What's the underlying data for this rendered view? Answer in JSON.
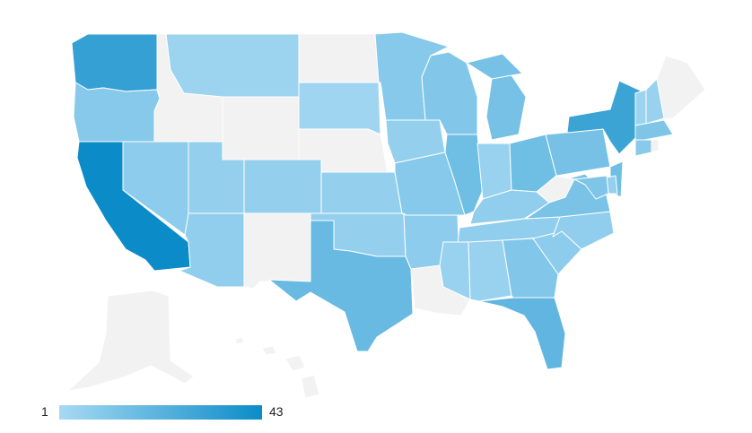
{
  "map": {
    "region": "United States",
    "colors": {
      "no_data": "#f2f2f2",
      "scale_min": "#a7d9f3",
      "scale_max": "#0b8cc8"
    }
  },
  "legend": {
    "min_label": "1",
    "max_label": "43",
    "min_value": 1,
    "max_value": 43
  },
  "states": [
    {
      "id": "WA",
      "value": 32
    },
    {
      "id": "OR",
      "value": 10
    },
    {
      "id": "CA",
      "value": 43
    },
    {
      "id": "ID",
      "value": null
    },
    {
      "id": "NV",
      "value": 8
    },
    {
      "id": "UT",
      "value": 6
    },
    {
      "id": "AZ",
      "value": 7
    },
    {
      "id": "MT",
      "value": 4
    },
    {
      "id": "WY",
      "value": null
    },
    {
      "id": "CO",
      "value": 6
    },
    {
      "id": "NM",
      "value": null
    },
    {
      "id": "ND",
      "value": null
    },
    {
      "id": "SD",
      "value": 3
    },
    {
      "id": "NE",
      "value": null
    },
    {
      "id": "KS",
      "value": 6
    },
    {
      "id": "OK",
      "value": 6
    },
    {
      "id": "TX",
      "value": 18
    },
    {
      "id": "MN",
      "value": 10
    },
    {
      "id": "IA",
      "value": 6
    },
    {
      "id": "MO",
      "value": 10
    },
    {
      "id": "AR",
      "value": 8
    },
    {
      "id": "LA",
      "value": null
    },
    {
      "id": "WI",
      "value": 11
    },
    {
      "id": "IL",
      "value": 16
    },
    {
      "id": "MI",
      "value": 14
    },
    {
      "id": "IN",
      "value": 5
    },
    {
      "id": "OH",
      "value": 16
    },
    {
      "id": "KY",
      "value": 7
    },
    {
      "id": "TN",
      "value": 7
    },
    {
      "id": "MS",
      "value": 5
    },
    {
      "id": "AL",
      "value": 5
    },
    {
      "id": "GA",
      "value": 11
    },
    {
      "id": "FL",
      "value": 20
    },
    {
      "id": "SC",
      "value": 8
    },
    {
      "id": "NC",
      "value": 7
    },
    {
      "id": "VA",
      "value": 13
    },
    {
      "id": "WV",
      "value": null
    },
    {
      "id": "PA",
      "value": 14
    },
    {
      "id": "NY",
      "value": 30
    },
    {
      "id": "VT",
      "value": 4
    },
    {
      "id": "NH",
      "value": 5
    },
    {
      "id": "ME",
      "value": null
    },
    {
      "id": "MA",
      "value": 12
    },
    {
      "id": "CT",
      "value": 9
    },
    {
      "id": "RI",
      "value": null
    },
    {
      "id": "NJ",
      "value": 16
    },
    {
      "id": "DE",
      "value": 6
    },
    {
      "id": "MD",
      "value": 12
    },
    {
      "id": "AK",
      "value": null
    },
    {
      "id": "HI",
      "value": null
    }
  ]
}
